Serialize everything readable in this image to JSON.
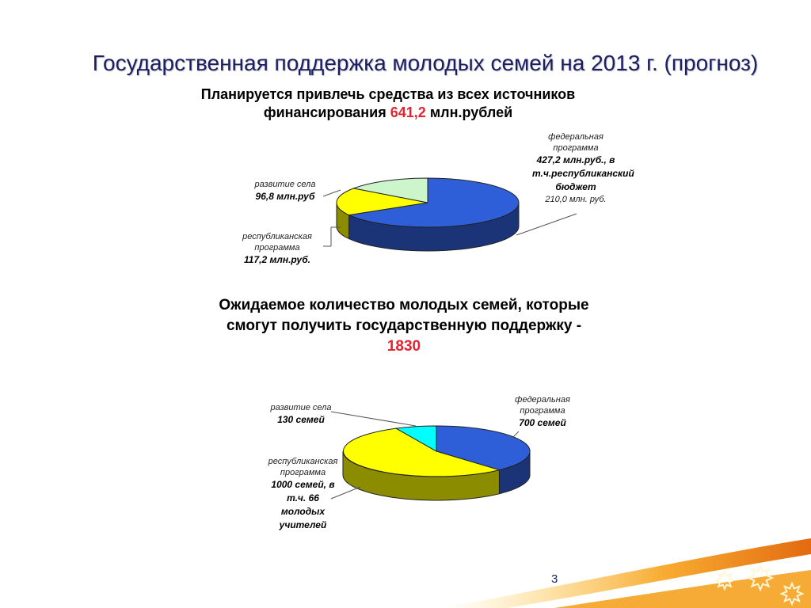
{
  "slide": {
    "title": "Государственная поддержка молодых семей на 2013 г. (прогноз)",
    "subtitle1": {
      "text": "Планируется привлечь средства из всех источников финансирования",
      "value": "641,2",
      "unit": "млн.рублей"
    },
    "subtitle2": {
      "text": "Ожидаемое количество молодых семей, которые смогут получить государственную поддержку  -",
      "value": "1830"
    },
    "page_number": "3",
    "colors": {
      "title": "#1b1e63",
      "accent": "#e5232f",
      "federal": "#2f5fd8",
      "republic": "#ffff00",
      "village1": "#ccf5cc",
      "village2": "#00ffff"
    }
  },
  "chart_data": [
    {
      "type": "pie",
      "title": "",
      "slices": [
        {
          "label": "федеральная программа",
          "value": 427.2,
          "value_text": "427,2 млн.руб., в т.ч.республиканский бюджет",
          "note": "210,0 млн. руб.",
          "color": "#2f5fd8"
        },
        {
          "label": "республиканская программа",
          "value": 117.2,
          "value_text": "117,2 млн.руб.",
          "color": "#ffff00"
        },
        {
          "label": "развитие села",
          "value": 96.8,
          "value_text": "96,8 млн.руб",
          "color": "#ccf5cc"
        }
      ]
    },
    {
      "type": "pie",
      "title": "",
      "slices": [
        {
          "label": "федеральная программа",
          "value": 700,
          "value_text": "700 семей",
          "color": "#2f5fd8"
        },
        {
          "label": "республиканская программа",
          "value": 1000,
          "value_text": "1000 семей, в т.ч. 66 молодых учителей",
          "color": "#ffff00"
        },
        {
          "label": "развитие села",
          "value": 130,
          "value_text": "130 семей",
          "color": "#00ffff"
        }
      ]
    }
  ]
}
